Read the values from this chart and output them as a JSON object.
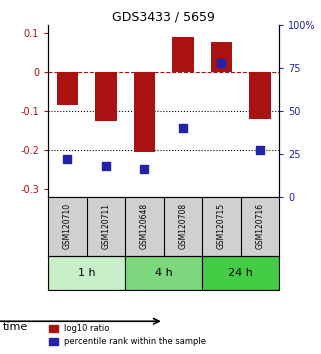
{
  "title": "GDS3433 / 5659",
  "samples": [
    "GSM120710",
    "GSM120711",
    "GSM120648",
    "GSM120708",
    "GSM120715",
    "GSM120716"
  ],
  "log10_ratio": [
    -0.085,
    -0.125,
    -0.205,
    0.09,
    0.075,
    -0.12
  ],
  "percentile_rank": [
    22,
    18,
    16,
    40,
    78,
    27
  ],
  "groups": [
    {
      "label": "1 h",
      "indices": [
        0,
        1
      ],
      "color": "#c8f0c8"
    },
    {
      "label": "4 h",
      "indices": [
        2,
        3
      ],
      "color": "#7dd87d"
    },
    {
      "label": "24 h",
      "indices": [
        4,
        5
      ],
      "color": "#44cc44"
    }
  ],
  "bar_color": "#aa1111",
  "dot_color": "#2222aa",
  "ylim_left": [
    -0.32,
    0.12
  ],
  "ylim_right": [
    0,
    100
  ],
  "yticks_left": [
    0.1,
    0.0,
    -0.1,
    -0.2,
    -0.3
  ],
  "yticks_right": [
    100,
    75,
    50,
    25,
    0
  ],
  "bar_width": 0.55,
  "dot_size": 35,
  "legend_items": [
    "log10 ratio",
    "percentile rank within the sample"
  ]
}
